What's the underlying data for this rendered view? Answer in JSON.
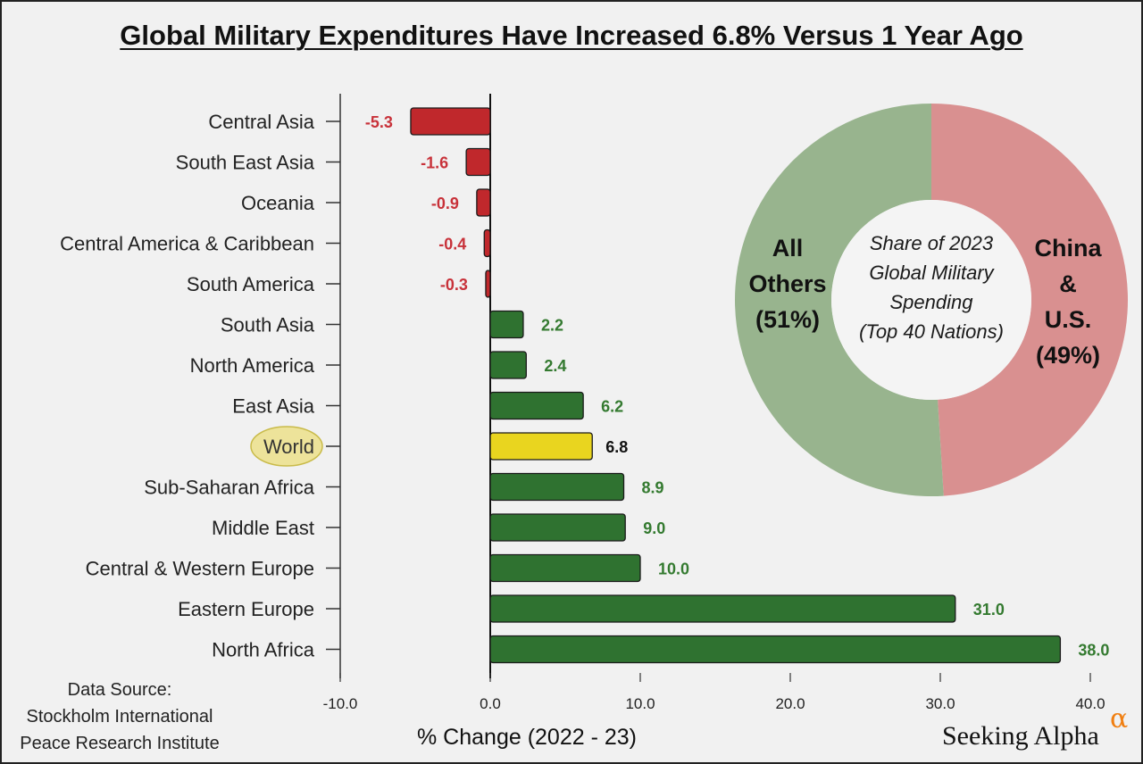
{
  "chart_data": [
    {
      "type": "bar",
      "orientation": "horizontal",
      "title": "Global Military Expenditures Have Increased 6.8% Versus 1 Year Ago",
      "xlabel": "% Change (2022 - 23)",
      "xlim": [
        -10.0,
        40.0
      ],
      "xticks": [
        "-10.0",
        "0.0",
        "10.0",
        "20.0",
        "30.0",
        "40.0"
      ],
      "categories": [
        "Central Asia",
        "South East Asia",
        "Oceania",
        "Central America & Caribbean",
        "South America",
        "South Asia",
        "North America",
        "East Asia",
        "World",
        "Sub-Saharan Africa",
        "Middle East",
        "Central & Western Europe",
        "Eastern Europe",
        "North Africa"
      ],
      "values": [
        -5.3,
        -1.6,
        -0.9,
        -0.4,
        -0.3,
        2.2,
        2.4,
        6.2,
        6.8,
        8.9,
        9.0,
        10.0,
        31.0,
        38.0
      ],
      "labels": [
        "-5.3",
        "-1.6",
        "-0.9",
        "-0.4",
        "-0.3",
        "2.2",
        "2.4",
        "6.2",
        "6.8",
        "8.9",
        "9.0",
        "10.0",
        "31.0",
        "38.0"
      ],
      "highlight": "World",
      "colors": {
        "negative": "#c0282c",
        "positive": "#2f7230",
        "highlight": "#e9d51f",
        "negative_text": "#c8323a",
        "positive_text": "#347a30",
        "highlight_text": "#111111"
      }
    },
    {
      "type": "pie",
      "style": "donut",
      "title": "Share of 2023 Global Military Spending (Top 40 Nations)",
      "slices": [
        {
          "name": "China & U.S.",
          "value": 49,
          "color": "#d99090"
        },
        {
          "name": "All Others",
          "value": 51,
          "color": "#98b48e"
        }
      ]
    }
  ],
  "donut_text": {
    "center": [
      "Share of 2023",
      "Global Military",
      "Spending",
      "(Top 40 Nations)"
    ],
    "left": [
      "All",
      "Others",
      "(51%)"
    ],
    "right": [
      "China",
      "&",
      "U.S.",
      "(49%)"
    ]
  },
  "source": {
    "lines": [
      "Data Source:",
      "Stockholm International",
      "Peace Research Institute"
    ]
  },
  "logo": {
    "text": "Seeking Alpha",
    "symbol": "α"
  }
}
